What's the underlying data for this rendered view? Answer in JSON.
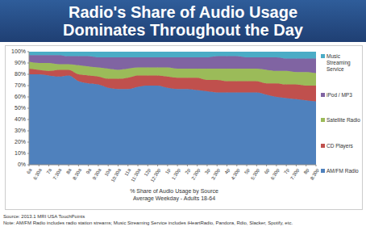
{
  "chart_data": {
    "type": "area",
    "title": "Radio's Share of Audio Usage Dominates Throughout the Day",
    "stacked": true,
    "grid": false,
    "legend": "right",
    "xlabel": "% Share of Audio Usage by Source",
    "xlabel_note": "Average Weekday - Adults 18-64",
    "source": "Source: 2013.1 MRI USA TouchPoints",
    "note": "Note: AM/FM Radio includes radio station streams; Music Streaming Service includes iHeartRadio, Pandora, Rdio, Slacker, Spotify, etc.",
    "categories": [
      "6a",
      "6:30a",
      "7a",
      "7:30a",
      "8a",
      "8:30a",
      "9a",
      "9:30a",
      "10a",
      "10:30a",
      "11a",
      "11:30a",
      "12p",
      "12:30p",
      "1p",
      "1:30p",
      "2p",
      "2:30p",
      "3p",
      "3:30p",
      "4p",
      "4:30p",
      "5p",
      "5:30p",
      "6p",
      "6:30p",
      "7p",
      "7:30p",
      "8p",
      "8:30p"
    ],
    "ylim": [
      0,
      100
    ],
    "yticks": [
      {
        "value": 0,
        "label": "0%"
      },
      {
        "value": 10,
        "label": "10%"
      },
      {
        "value": 20,
        "label": "20%"
      },
      {
        "value": 30,
        "label": "30%"
      },
      {
        "value": 40,
        "label": "40%"
      },
      {
        "value": 50,
        "label": "50%"
      },
      {
        "value": 60,
        "label": "60%"
      },
      {
        "value": 70,
        "label": "70%"
      },
      {
        "value": 80,
        "label": "80%"
      },
      {
        "value": 90,
        "label": "90%"
      },
      {
        "value": 100,
        "label": "100%"
      }
    ],
    "series": [
      {
        "name": "AM/FM Radio",
        "color": "#4f81bd",
        "values": [
          80,
          80,
          79,
          78,
          79,
          74,
          72,
          71,
          68,
          67,
          67,
          69,
          70,
          70,
          68,
          67,
          67,
          66,
          65,
          64,
          64,
          64,
          64,
          64,
          62,
          60,
          59,
          58,
          57,
          56
        ]
      },
      {
        "name": "CD Players",
        "color": "#c0504d",
        "values": [
          5,
          4,
          4,
          6,
          5,
          6,
          7,
          7,
          8,
          9,
          10,
          10,
          9,
          9,
          10,
          10,
          10,
          11,
          10,
          11,
          10,
          10,
          10,
          10,
          10,
          12,
          12,
          13,
          13,
          14
        ]
      },
      {
        "name": "Satellite Radio",
        "color": "#9bbb59",
        "values": [
          6,
          6,
          7,
          5,
          5,
          8,
          8,
          8,
          9,
          8,
          8,
          7,
          7,
          7,
          8,
          8,
          8,
          8,
          10,
          10,
          11,
          11,
          11,
          11,
          12,
          11,
          12,
          11,
          12,
          11
        ]
      },
      {
        "name": "iPod / MP3",
        "color": "#8064a2",
        "values": [
          6,
          7,
          7,
          8,
          7,
          8,
          9,
          9,
          10,
          11,
          10,
          9,
          9,
          9,
          9,
          10,
          10,
          10,
          10,
          11,
          11,
          11,
          10,
          10,
          11,
          12,
          11,
          12,
          12,
          13
        ]
      },
      {
        "name": "Music Streaming Service",
        "color": "#4bacc6",
        "values": [
          3,
          3,
          3,
          3,
          4,
          4,
          4,
          5,
          5,
          5,
          5,
          5,
          5,
          5,
          5,
          5,
          5,
          5,
          5,
          4,
          4,
          4,
          5,
          5,
          5,
          5,
          6,
          6,
          6,
          6
        ]
      }
    ]
  }
}
